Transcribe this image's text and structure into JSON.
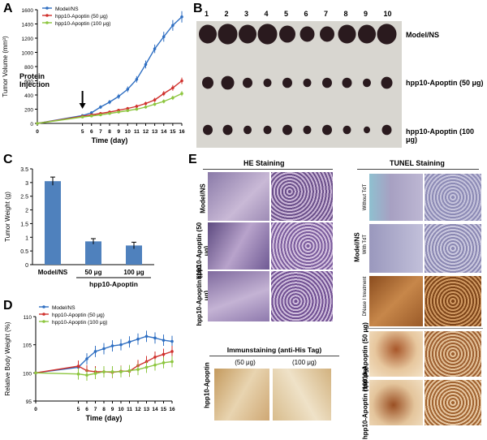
{
  "panels": {
    "A": "A",
    "B": "B",
    "C": "C",
    "D": "D",
    "E": "E"
  },
  "colors": {
    "ns": "#2f6fc2",
    "low": "#d0312d",
    "high": "#8dc63f",
    "bar": "#4f81bd"
  },
  "chart_data": [
    {
      "id": "A",
      "type": "line",
      "xlabel": "Time (day)",
      "ylabel": "Tumor Volume (mm³)",
      "x": [
        0,
        5,
        6,
        7,
        8,
        9,
        10,
        11,
        12,
        13,
        14,
        15,
        16
      ],
      "ylim": [
        0,
        1600
      ],
      "yticks": [
        0,
        200,
        400,
        600,
        800,
        1000,
        1200,
        1400,
        1600
      ],
      "annotation": [
        "Protein",
        "Injection"
      ],
      "legend": [
        "Model/NS",
        "hpp10-Apoptin (50 μg)",
        "hpp10-Apoptin (100 μg)"
      ],
      "series": [
        {
          "name": "Model/NS",
          "values": [
            0,
            110,
            150,
            230,
            300,
            380,
            480,
            620,
            830,
            1050,
            1220,
            1380,
            1500
          ],
          "err": [
            0,
            15,
            20,
            25,
            30,
            35,
            40,
            45,
            55,
            60,
            70,
            75,
            80
          ]
        },
        {
          "name": "hpp10-Apoptin (50 μg)",
          "values": [
            0,
            100,
            120,
            140,
            160,
            185,
            210,
            240,
            280,
            330,
            420,
            500,
            600
          ],
          "err": [
            0,
            15,
            15,
            15,
            20,
            20,
            20,
            25,
            25,
            30,
            35,
            40,
            45
          ]
        },
        {
          "name": "hpp10-Apoptin (100 μg)",
          "values": [
            0,
            90,
            105,
            120,
            140,
            160,
            180,
            200,
            230,
            270,
            310,
            360,
            420
          ],
          "err": [
            0,
            12,
            12,
            14,
            15,
            16,
            18,
            20,
            22,
            25,
            28,
            30,
            35
          ]
        }
      ]
    },
    {
      "id": "C",
      "type": "bar",
      "ylabel": "Tumor Weight (g)",
      "categories": [
        "Model/NS",
        "50 μg",
        "100 μg"
      ],
      "values": [
        3.05,
        0.85,
        0.7
      ],
      "err": [
        0.15,
        0.1,
        0.12
      ],
      "ylim": [
        0,
        3.5
      ],
      "yticks": [
        0,
        0.5,
        1,
        1.5,
        2,
        2.5,
        3,
        3.5
      ],
      "group_label": "hpp10-Apoptin"
    },
    {
      "id": "D",
      "type": "line",
      "xlabel": "Time (day)",
      "ylabel": "Relative Body Weight (%)",
      "x": [
        0,
        5,
        6,
        7,
        8,
        9,
        10,
        11,
        12,
        13,
        14,
        15,
        16
      ],
      "ylim": [
        95,
        110
      ],
      "yticks": [
        95,
        100,
        105,
        110
      ],
      "legend": [
        "Model/NS",
        "hpp10-Apoptin (50 μg)",
        "hpp10-Apoptin (100 μg)"
      ],
      "series": [
        {
          "name": "Model/NS",
          "values": [
            100,
            101,
            102.5,
            103.8,
            104.3,
            104.8,
            105,
            105.5,
            106,
            106.5,
            106.2,
            105.8,
            105.6
          ],
          "err": [
            0,
            1,
            1,
            1,
            1,
            1,
            1,
            1,
            1,
            1,
            1,
            1,
            1
          ]
        },
        {
          "name": "hpp10-Apoptin (50 μg)",
          "values": [
            100,
            101.2,
            100.4,
            100.2,
            100.2,
            100.1,
            100.3,
            100.3,
            101.3,
            102,
            102.8,
            103.3,
            103.8
          ],
          "err": [
            0,
            1,
            1,
            1,
            1,
            1,
            1,
            1,
            1,
            1,
            1,
            1,
            1
          ]
        },
        {
          "name": "hpp10-Apoptin (100 μg)",
          "values": [
            100,
            99.8,
            99.6,
            99.9,
            100.2,
            100.2,
            100.2,
            100.4,
            100.6,
            101,
            101.4,
            101.8,
            102
          ],
          "err": [
            0,
            1,
            1,
            1,
            1,
            1,
            1,
            1,
            1,
            1,
            1,
            1,
            1
          ]
        }
      ]
    }
  ],
  "panelB": {
    "numbers": [
      "1",
      "2",
      "3",
      "4",
      "5",
      "6",
      "7",
      "8",
      "9",
      "10"
    ],
    "rows": [
      "Model/NS",
      "hpp10-Apoptin (50 μg)",
      "hpp10-Apoptin (100 μg)"
    ]
  },
  "panelE": {
    "he_title": "HE Staining",
    "tunel_title": "TUNEL Staining",
    "immuno_title": "Immunstaining (anti-His Tag)",
    "he_rows": [
      "Model/NS",
      "hpp10-Apoptin (50 μg)",
      "hpp10-Apoptin (100 μg)"
    ],
    "tunel_group": "Model/NS",
    "tunel_rows": [
      "Without TdT",
      "With TdT",
      "DNase I treatment"
    ],
    "tunel_lower": [
      "hpp10-Apoptin (50 μg)",
      "hpp10-Apoptin (100 μg)"
    ],
    "immuno_cols": [
      "(50 μg)",
      "(100 μg)"
    ],
    "immuno_row": "hpp10-Apoptin"
  }
}
